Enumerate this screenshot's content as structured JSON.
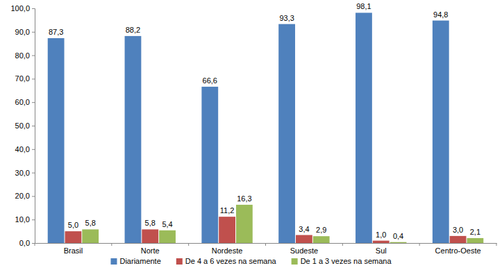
{
  "chart_data": {
    "type": "bar",
    "categories": [
      "Brasil",
      "Norte",
      "Nordeste",
      "Sudeste",
      "Sul",
      "Centro-Oeste"
    ],
    "series": [
      {
        "name": "Diariamente",
        "color": "#4f81bd",
        "values": [
          87.3,
          88.2,
          66.6,
          93.3,
          98.1,
          94.8
        ],
        "value_labels": [
          "87,3",
          "88,2",
          "66,6",
          "93,3",
          "98,1",
          "94,8"
        ]
      },
      {
        "name": "De 4 a 6 vezes na semana",
        "color": "#c0504d",
        "values": [
          5.0,
          5.8,
          11.2,
          3.4,
          1.0,
          3.0
        ],
        "value_labels": [
          "5,0",
          "5,8",
          "11,2",
          "3,4",
          "1,0",
          "3,0"
        ]
      },
      {
        "name": "De 1 a 3 vezes na semana",
        "color": "#9bbb59",
        "values": [
          5.8,
          5.4,
          16.3,
          2.9,
          0.4,
          2.1
        ],
        "value_labels": [
          "5,8",
          "5,4",
          "16,3",
          "2,9",
          "0,4",
          "2,1"
        ]
      }
    ],
    "ylim": [
      0,
      100
    ],
    "yticks": [
      {
        "value": 0,
        "label": "0,0"
      },
      {
        "value": 10,
        "label": "10,0"
      },
      {
        "value": 20,
        "label": "20,0"
      },
      {
        "value": 30,
        "label": "30,0"
      },
      {
        "value": 40,
        "label": "40,0"
      },
      {
        "value": 50,
        "label": "50,0"
      },
      {
        "value": 60,
        "label": "60,0"
      },
      {
        "value": 70,
        "label": "70,0"
      },
      {
        "value": 80,
        "label": "80,0"
      },
      {
        "value": 90,
        "label": "90,0"
      },
      {
        "value": 100,
        "label": "100,0"
      }
    ],
    "grid": false,
    "legend": "bottom",
    "data_labels": true
  }
}
